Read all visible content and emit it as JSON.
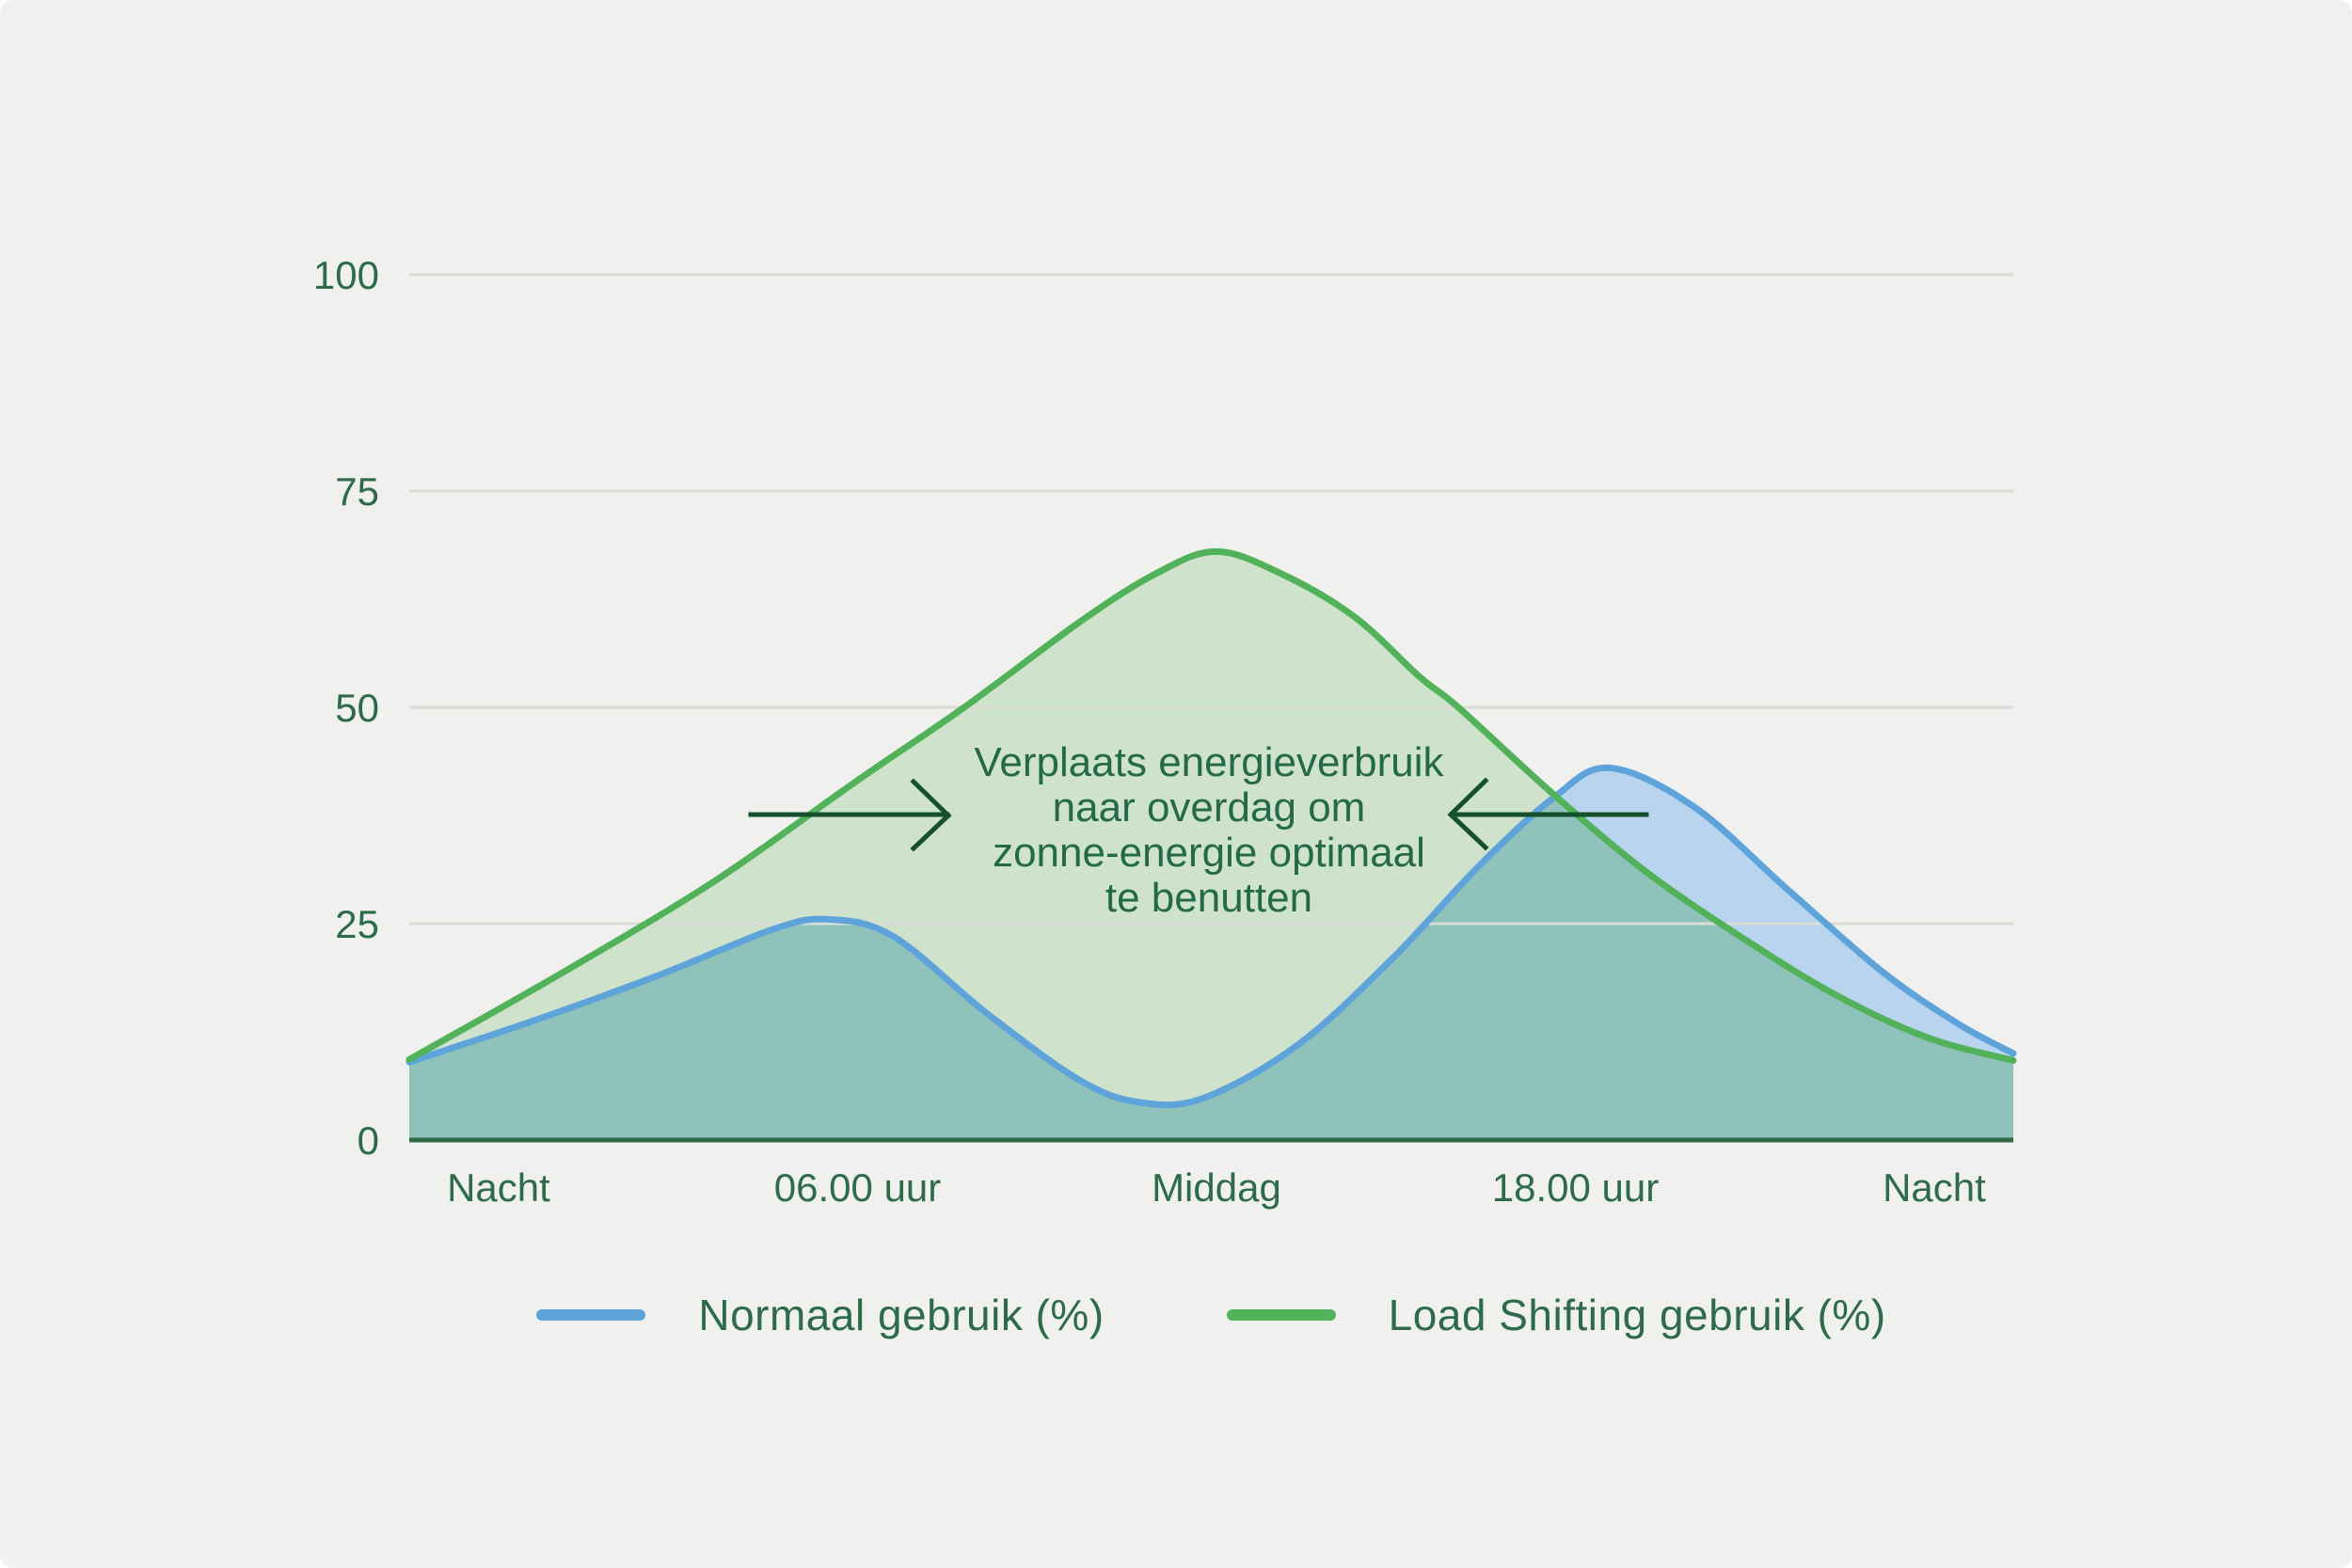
{
  "card": {
    "background": "#f0f0ee"
  },
  "chart_data": {
    "type": "area",
    "title": "",
    "x_tick_labels": [
      "Nacht",
      "06.00 uur",
      "Middag",
      "18.00 uur",
      "Nacht"
    ],
    "y_tick_labels": [
      "0",
      "25",
      "50",
      "75",
      "100"
    ],
    "y_ticks": [
      0,
      25,
      50,
      75,
      100
    ],
    "ylim": [
      0,
      100
    ],
    "grid": "horizontal",
    "legend_position": "bottom",
    "series": [
      {
        "name": "Normaal gebruik (%)",
        "stroke": "#5fa3db",
        "fill": "#b9d4ee",
        "points": [
          {
            "t": 0.0,
            "v": 9.0
          },
          {
            "t": 0.073,
            "v": 13.5
          },
          {
            "t": 0.155,
            "v": 19.0
          },
          {
            "t": 0.226,
            "v": 24.3
          },
          {
            "t": 0.261,
            "v": 25.5
          },
          {
            "t": 0.302,
            "v": 23.5
          },
          {
            "t": 0.361,
            "v": 14.5
          },
          {
            "t": 0.419,
            "v": 6.8
          },
          {
            "t": 0.457,
            "v": 4.3
          },
          {
            "t": 0.496,
            "v": 4.9
          },
          {
            "t": 0.554,
            "v": 11.0
          },
          {
            "t": 0.613,
            "v": 21.0
          },
          {
            "t": 0.666,
            "v": 31.5
          },
          {
            "t": 0.713,
            "v": 39.5
          },
          {
            "t": 0.748,
            "v": 43.0
          },
          {
            "t": 0.801,
            "v": 38.5
          },
          {
            "t": 0.859,
            "v": 29.0
          },
          {
            "t": 0.918,
            "v": 19.5
          },
          {
            "t": 0.965,
            "v": 13.5
          },
          {
            "t": 1.0,
            "v": 10.0
          }
        ]
      },
      {
        "name": "Load Shifting gebruik (%)",
        "stroke": "#52b25a",
        "fill": "#cfe3cc",
        "points": [
          {
            "t": 0.0,
            "v": 9.3
          },
          {
            "t": 0.097,
            "v": 19.5
          },
          {
            "t": 0.191,
            "v": 30.0
          },
          {
            "t": 0.279,
            "v": 41.5
          },
          {
            "t": 0.346,
            "v": 50.0
          },
          {
            "t": 0.419,
            "v": 60.0
          },
          {
            "t": 0.466,
            "v": 65.5
          },
          {
            "t": 0.503,
            "v": 68.0
          },
          {
            "t": 0.543,
            "v": 65.5
          },
          {
            "t": 0.589,
            "v": 60.5
          },
          {
            "t": 0.63,
            "v": 53.5
          },
          {
            "t": 0.654,
            "v": 50.0
          },
          {
            "t": 0.713,
            "v": 40.0
          },
          {
            "t": 0.771,
            "v": 31.0
          },
          {
            "t": 0.83,
            "v": 23.5
          },
          {
            "t": 0.889,
            "v": 16.8
          },
          {
            "t": 0.947,
            "v": 11.8
          },
          {
            "t": 1.0,
            "v": 9.2
          }
        ]
      }
    ],
    "overlap_fill": "#8fc2ba",
    "annotation": {
      "lines": [
        "Verplaats energieverbruik",
        "naar overdag om",
        "zonne-energie optimaal",
        "te benutten"
      ],
      "color": "#256a48"
    },
    "colors": {
      "gridline": "#d8ddd6",
      "axis_line": "#2e6b4a",
      "tick_text": "#2e6b4b",
      "arrow": "#14502c"
    }
  },
  "legend": {
    "items": [
      {
        "label": "Normaal gebruik (%)"
      },
      {
        "label": "Load Shifting gebruik (%)"
      }
    ]
  }
}
